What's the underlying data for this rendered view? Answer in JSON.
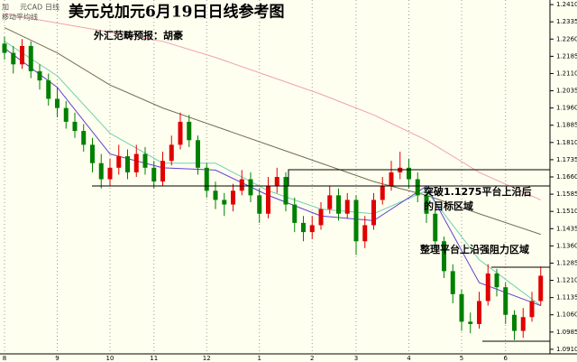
{
  "chart_data": {
    "type": "candlestick",
    "title": "美元兑加元6月19日日线参考图",
    "subtitle": "外汇范畴预报：胡豪",
    "instrument_labels": [
      "加",
      "元CAD",
      "日线"
    ],
    "indicator_label": "移动平均线",
    "annotations": [
      "突破1.1275平台上沿后",
      "的目标区域",
      "整理平台上沿强阻力区域"
    ],
    "up_color": "#e00000",
    "down_color": "#008000",
    "categories": [
      "8",
      null,
      null,
      null,
      null,
      null,
      "9",
      null,
      null,
      null,
      null,
      null,
      "10",
      null,
      null,
      null,
      null,
      "11",
      null,
      null,
      null,
      null,
      null,
      "12",
      null,
      null,
      null,
      null,
      null,
      "1",
      null,
      null,
      null,
      null,
      null,
      "2",
      null,
      null,
      null,
      null,
      "3",
      null,
      null,
      null,
      null,
      null,
      "4",
      null,
      null,
      null,
      null,
      null,
      "5",
      null,
      null,
      null,
      null,
      "6",
      null,
      null,
      null,
      null
    ],
    "open": [
      1.224,
      1.22,
      1.215,
      1.223,
      1.212,
      1.208,
      1.2,
      1.196,
      1.19,
      1.186,
      1.18,
      1.172,
      1.165,
      1.17,
      1.175,
      1.168,
      1.176,
      1.17,
      1.164,
      1.173,
      1.18,
      1.19,
      1.182,
      1.17,
      1.16,
      1.156,
      1.154,
      1.16,
      1.165,
      1.158,
      1.15,
      1.162,
      1.166,
      1.154,
      1.146,
      1.142,
      1.145,
      1.152,
      1.158,
      1.15,
      1.156,
      1.138,
      1.145,
      1.156,
      1.162,
      1.168,
      1.17,
      1.165,
      1.158,
      1.15,
      1.138,
      1.125,
      1.115,
      1.103,
      1.102,
      1.112,
      1.124,
      1.118,
      1.106,
      1.099,
      1.105,
      1.112
    ],
    "high": [
      1.227,
      1.223,
      1.226,
      1.225,
      1.215,
      1.211,
      1.205,
      1.199,
      1.194,
      1.189,
      1.183,
      1.176,
      1.174,
      1.18,
      1.178,
      1.18,
      1.179,
      1.173,
      1.177,
      1.184,
      1.194,
      1.193,
      1.184,
      1.172,
      1.164,
      1.159,
      1.163,
      1.169,
      1.168,
      1.161,
      1.166,
      1.17,
      1.168,
      1.157,
      1.149,
      1.149,
      1.155,
      1.162,
      1.161,
      1.159,
      1.158,
      1.149,
      1.159,
      1.166,
      1.173,
      1.177,
      1.174,
      1.168,
      1.161,
      1.152,
      1.14,
      1.128,
      1.117,
      1.107,
      1.116,
      1.128,
      1.126,
      1.12,
      1.108,
      1.109,
      1.116,
      1.127
    ],
    "low": [
      1.217,
      1.211,
      1.213,
      1.209,
      1.204,
      1.197,
      1.192,
      1.187,
      1.183,
      1.177,
      1.168,
      1.161,
      1.162,
      1.167,
      1.165,
      1.166,
      1.167,
      1.161,
      1.162,
      1.171,
      1.178,
      1.179,
      1.167,
      1.157,
      1.152,
      1.149,
      1.151,
      1.158,
      1.155,
      1.146,
      1.148,
      1.159,
      1.151,
      1.142,
      1.138,
      1.139,
      1.143,
      1.15,
      1.147,
      1.148,
      1.132,
      1.135,
      1.143,
      1.154,
      1.16,
      1.165,
      1.161,
      1.155,
      1.146,
      1.135,
      1.122,
      1.111,
      1.099,
      1.098,
      1.1,
      1.11,
      1.114,
      1.102,
      1.095,
      1.096,
      1.103,
      1.11
    ],
    "close": [
      1.22,
      1.215,
      1.223,
      1.212,
      1.208,
      1.2,
      1.196,
      1.19,
      1.186,
      1.18,
      1.172,
      1.165,
      1.17,
      1.175,
      1.168,
      1.176,
      1.17,
      1.164,
      1.173,
      1.18,
      1.19,
      1.182,
      1.17,
      1.16,
      1.156,
      1.154,
      1.16,
      1.165,
      1.158,
      1.15,
      1.162,
      1.166,
      1.154,
      1.146,
      1.142,
      1.145,
      1.152,
      1.158,
      1.15,
      1.156,
      1.138,
      1.145,
      1.156,
      1.162,
      1.168,
      1.17,
      1.165,
      1.158,
      1.15,
      1.138,
      1.125,
      1.115,
      1.103,
      1.102,
      1.112,
      1.124,
      1.118,
      1.106,
      1.099,
      1.105,
      1.112,
      1.123
    ],
    "lines": [
      {
        "color": "#f0a0b0",
        "x": [
          0,
          6,
          12,
          18,
          24,
          30,
          36,
          42,
          48,
          54,
          61
        ],
        "values": [
          1.237,
          1.233,
          1.229,
          1.225,
          1.218,
          1.21,
          1.202,
          1.193,
          1.182,
          1.168,
          1.156
        ]
      },
      {
        "color": "#707050",
        "x": [
          0,
          6,
          12,
          18,
          24,
          30,
          36,
          42,
          48,
          54,
          61
        ],
        "values": [
          1.231,
          1.22,
          1.206,
          1.196,
          1.188,
          1.18,
          1.172,
          1.164,
          1.158,
          1.15,
          1.141
        ]
      },
      {
        "color": "#70d0b0",
        "x": [
          0,
          6,
          12,
          18,
          24,
          30,
          36,
          42,
          48,
          54,
          61
        ],
        "values": [
          1.225,
          1.21,
          1.185,
          1.172,
          1.172,
          1.16,
          1.152,
          1.15,
          1.16,
          1.13,
          1.11
        ]
      },
      {
        "color": "#6040d0",
        "x": [
          0,
          6,
          12,
          18,
          24,
          30,
          36,
          42,
          48,
          54,
          61
        ],
        "values": [
          1.222,
          1.205,
          1.176,
          1.17,
          1.169,
          1.158,
          1.149,
          1.147,
          1.162,
          1.12,
          1.11
        ]
      }
    ],
    "ylim": [
      1.089,
      1.243
    ],
    "yticks": [
      {
        "value": 1.241,
        "label": "1.2410"
      },
      {
        "value": 1.2335,
        "label": "1.2335"
      },
      {
        "value": 1.226,
        "label": "1.2260"
      },
      {
        "value": 1.2185,
        "label": "1.2185"
      },
      {
        "value": 1.211,
        "label": "1.2110"
      },
      {
        "value": 1.2035,
        "label": "1.2035"
      },
      {
        "value": 1.196,
        "label": "1.1960"
      },
      {
        "value": 1.1885,
        "label": "1.1885"
      },
      {
        "value": 1.181,
        "label": "1.1810"
      },
      {
        "value": 1.1735,
        "label": "1.1735"
      },
      {
        "value": 1.166,
        "label": "1.1660"
      },
      {
        "value": 1.1585,
        "label": "1.1585"
      },
      {
        "value": 1.151,
        "label": "1.1510"
      },
      {
        "value": 1.1435,
        "label": "1.1435"
      },
      {
        "value": 1.136,
        "label": "1.1360"
      },
      {
        "value": 1.1285,
        "label": "1.1285"
      },
      {
        "value": 1.121,
        "label": "1.1210"
      },
      {
        "value": 1.1135,
        "label": "1.1135"
      },
      {
        "value": 1.106,
        "label": "1.1060"
      },
      {
        "value": 1.0985,
        "label": "1.0985"
      },
      {
        "value": 1.091,
        "label": "1.0910"
      }
    ]
  }
}
